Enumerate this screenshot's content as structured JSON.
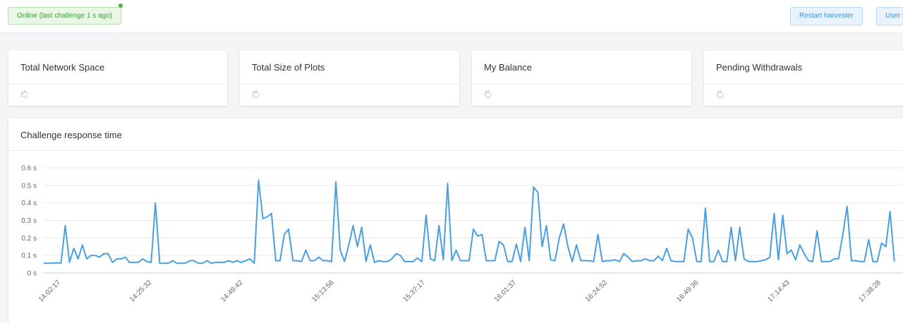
{
  "header": {
    "status_text": "Online (last challenge 1 s ago)",
    "status_color": "#3c9a3c",
    "restart_label": "Restart harvester",
    "user_label": "User I"
  },
  "cards": [
    {
      "title": "Total Network Space",
      "loading": true
    },
    {
      "title": "Total Size of Plots",
      "loading": true
    },
    {
      "title": "My Balance",
      "loading": true
    },
    {
      "title": "Pending Withdrawals",
      "loading": true
    }
  ],
  "chart_card": {
    "title": "Challenge response time"
  },
  "chart_data": {
    "type": "line",
    "title": "Challenge response time",
    "xlabel": "",
    "ylabel": "",
    "ylim": [
      0,
      0.6
    ],
    "ytick_labels": [
      "0 s",
      "0.1 s",
      "0.2 s",
      "0.3 s",
      "0.4 s",
      "0.5 s",
      "0.6 s"
    ],
    "xtick_labels": [
      "14:02:17",
      "14:25:32",
      "14:49:42",
      "15:13:56",
      "15:37:17",
      "16:01:37",
      "16:24:52",
      "16:49:36",
      "17:14:43",
      "17:38:28"
    ],
    "grid": true,
    "line_color": "#4a9fe0",
    "series": [
      {
        "values": [
          0.055,
          0.055,
          0.055,
          0.058,
          0.055,
          0.27,
          0.06,
          0.14,
          0.08,
          0.16,
          0.08,
          0.1,
          0.1,
          0.09,
          0.11,
          0.11,
          0.06,
          0.08,
          0.08,
          0.09,
          0.06,
          0.06,
          0.06,
          0.08,
          0.065,
          0.06,
          0.4,
          0.055,
          0.055,
          0.055,
          0.07,
          0.055,
          0.055,
          0.055,
          0.07,
          0.07,
          0.055,
          0.055,
          0.07,
          0.055,
          0.06,
          0.06,
          0.06,
          0.07,
          0.06,
          0.07,
          0.06,
          0.07,
          0.08,
          0.055,
          0.53,
          0.31,
          0.32,
          0.34,
          0.07,
          0.07,
          0.22,
          0.25,
          0.07,
          0.07,
          0.065,
          0.13,
          0.07,
          0.07,
          0.09,
          0.07,
          0.07,
          0.065,
          0.52,
          0.13,
          0.065,
          0.16,
          0.27,
          0.15,
          0.26,
          0.065,
          0.16,
          0.06,
          0.07,
          0.065,
          0.065,
          0.08,
          0.11,
          0.1,
          0.065,
          0.065,
          0.065,
          0.085,
          0.065,
          0.33,
          0.08,
          0.07,
          0.27,
          0.075,
          0.51,
          0.07,
          0.13,
          0.07,
          0.07,
          0.07,
          0.25,
          0.21,
          0.22,
          0.07,
          0.07,
          0.07,
          0.18,
          0.16,
          0.065,
          0.065,
          0.165,
          0.065,
          0.26,
          0.07,
          0.49,
          0.46,
          0.15,
          0.27,
          0.075,
          0.07,
          0.2,
          0.28,
          0.15,
          0.065,
          0.16,
          0.07,
          0.07,
          0.07,
          0.065,
          0.22,
          0.065,
          0.07,
          0.07,
          0.075,
          0.065,
          0.11,
          0.09,
          0.065,
          0.07,
          0.07,
          0.08,
          0.07,
          0.07,
          0.095,
          0.07,
          0.14,
          0.07,
          0.065,
          0.065,
          0.065,
          0.25,
          0.2,
          0.065,
          0.065,
          0.37,
          0.065,
          0.065,
          0.13,
          0.065,
          0.065,
          0.26,
          0.07,
          0.26,
          0.08,
          0.065,
          0.065,
          0.065,
          0.07,
          0.075,
          0.09,
          0.34,
          0.075,
          0.33,
          0.11,
          0.13,
          0.075,
          0.16,
          0.11,
          0.07,
          0.065,
          0.24,
          0.065,
          0.065,
          0.065,
          0.08,
          0.08,
          0.22,
          0.38,
          0.07,
          0.07,
          0.065,
          0.065,
          0.19,
          0.065,
          0.065,
          0.17,
          0.15,
          0.35,
          0.065
        ]
      }
    ]
  }
}
